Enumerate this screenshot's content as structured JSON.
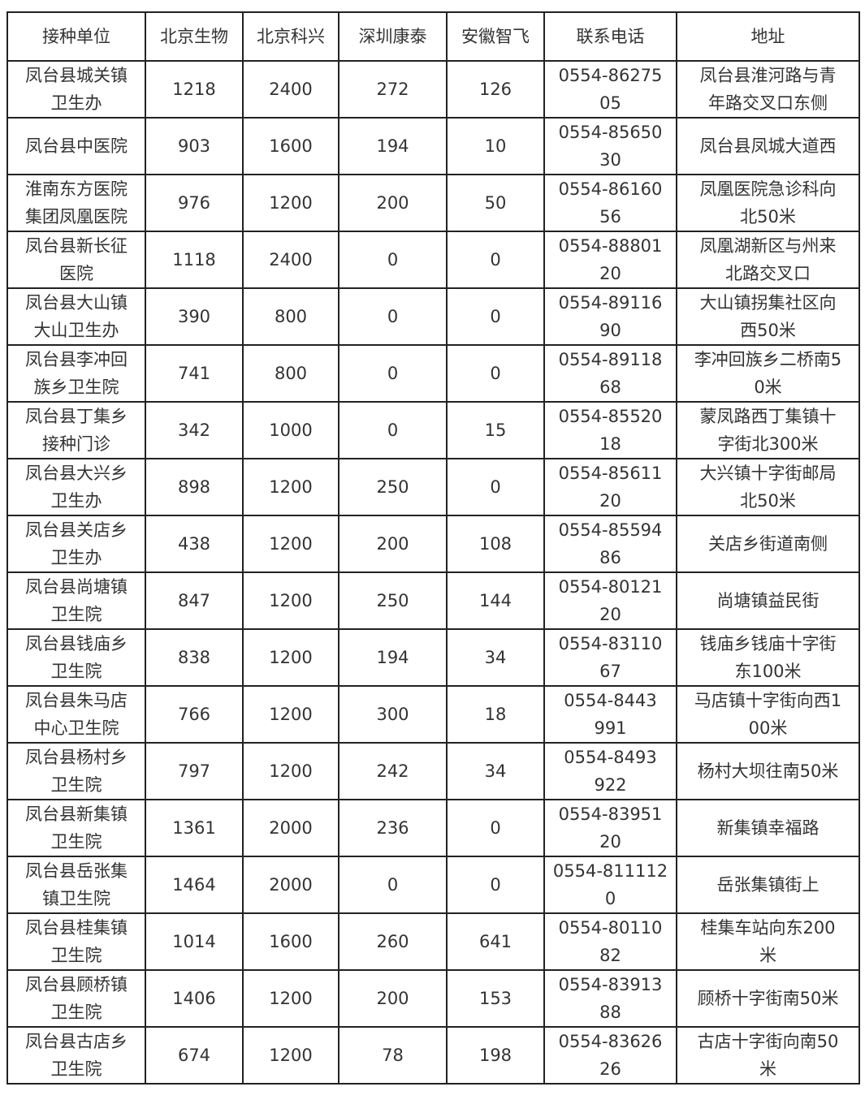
{
  "table": {
    "headers": [
      "接种单位",
      "北京生物",
      "北京科兴",
      "深圳康泰",
      "安徽智飞",
      "联系电话",
      "地址"
    ],
    "rows": [
      [
        "凤台县城关镇\n卫生办",
        "1218",
        "2400",
        "272",
        "126",
        "0554-86275\n05",
        "凤台县淮河路与青\n年路交叉口东侧"
      ],
      [
        "凤台县中医院",
        "903",
        "1600",
        "194",
        "10",
        "0554-85650\n30",
        "凤台县凤城大道西"
      ],
      [
        "淮南东方医院\n集团凤凰医院",
        "976",
        "1200",
        "200",
        "50",
        "0554-86160\n56",
        "凤凰医院急诊科向\n北50米"
      ],
      [
        "凤台县新长征\n医院",
        "1118",
        "2400",
        "0",
        "0",
        "0554-88801\n20",
        "凤凰湖新区与州来\n北路交叉口"
      ],
      [
        "凤台县大山镇\n大山卫生办",
        "390",
        "800",
        "0",
        "0",
        "0554-89116\n90",
        "大山镇拐集社区向\n西50米"
      ],
      [
        "凤台县李冲回\n族乡卫生院",
        "741",
        "800",
        "0",
        "0",
        "0554-89118\n68",
        "李冲回族乡二桥南5\n0米"
      ],
      [
        "凤台县丁集乡\n接种门诊",
        "342",
        "1000",
        "0",
        "15",
        "0554-85520\n18",
        "蒙凤路西丁集镇十\n字街北300米"
      ],
      [
        "凤台县大兴乡\n卫生办",
        "898",
        "1200",
        "250",
        "0",
        "0554-85611\n20",
        "大兴镇十字街邮局\n北50米"
      ],
      [
        "凤台县关店乡\n卫生办",
        "438",
        "1200",
        "200",
        "108",
        "0554-85594\n86",
        "关店乡街道南侧"
      ],
      [
        "凤台县尚塘镇\n卫生院",
        "847",
        "1200",
        "250",
        "144",
        "0554-80121\n20",
        "尚塘镇益民街"
      ],
      [
        "凤台县钱庙乡\n卫生院",
        "838",
        "1200",
        "194",
        "34",
        "0554-83110\n67",
        "钱庙乡钱庙十字街\n东100米"
      ],
      [
        "凤台县朱马店\n中心卫生院",
        "766",
        "1200",
        "300",
        "18",
        "0554-8443\n991",
        "马店镇十字街向西1\n00米"
      ],
      [
        "凤台县杨村乡\n卫生院",
        "797",
        "1200",
        "242",
        "34",
        "0554-8493\n922",
        "杨村大坝往南50米"
      ],
      [
        "凤台县新集镇\n卫生院",
        "1361",
        "2000",
        "236",
        "0",
        "0554-83951\n20",
        "新集镇幸福路"
      ],
      [
        "凤台县岳张集\n镇卫生院",
        "1464",
        "2000",
        "0",
        "0",
        "0554-811112\n0",
        "岳张集镇街上"
      ],
      [
        "凤台县桂集镇\n卫生院",
        "1014",
        "1600",
        "260",
        "641",
        "0554-80110\n82",
        "桂集车站向东200\n米"
      ],
      [
        "凤台县顾桥镇\n卫生院",
        "1406",
        "1200",
        "200",
        "153",
        "0554-83913\n88",
        "顾桥十字街南50米"
      ],
      [
        "凤台县古店乡\n卫生院",
        "674",
        "1200",
        "78",
        "198",
        "0554-83626\n26",
        "古店十字街向南50\n米"
      ]
    ]
  }
}
